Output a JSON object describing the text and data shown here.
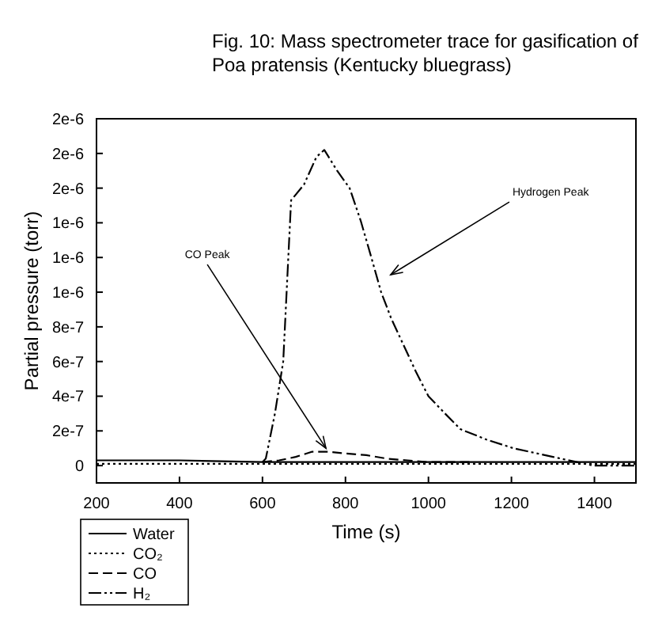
{
  "chart_data": {
    "type": "line",
    "title": "Fig. 10: Mass spectrometer trace for gasification of Poa pratensis (Kentucky bluegrass)",
    "xlabel": "Time (s)",
    "ylabel": "Partial pressure (torr)",
    "xlim": [
      200,
      1500
    ],
    "xticks": [
      200,
      400,
      600,
      800,
      1000,
      1200,
      1400
    ],
    "ylim": [
      -1e-07,
      2e-06
    ],
    "yticks": [
      0,
      {
        "value": 2e-07,
        "label": "2e-7"
      },
      {
        "value": 4e-07,
        "label": "4e-7"
      },
      {
        "value": 6e-07,
        "label": "6e-7"
      },
      {
        "value": 8e-07,
        "label": "8e-7"
      },
      {
        "value": 1e-06,
        "label": "1e-6"
      },
      {
        "value": 1.2e-06,
        "label": "1e-6"
      },
      {
        "value": 1.4e-06,
        "label": "1e-6"
      },
      {
        "value": 1.6e-06,
        "label": "2e-6"
      },
      {
        "value": 1.8e-06,
        "label": "2e-6"
      },
      {
        "value": 2e-06,
        "label": "2e-6"
      }
    ],
    "legend": "bottom left",
    "grid": false,
    "marker": "none",
    "series": [
      {
        "name": "Water",
        "color": "#000000",
        "line_style": "solid",
        "x": [
          200,
          400,
          600,
          800,
          1000,
          1200,
          1400,
          1500
        ],
        "values": [
          3e-08,
          3e-08,
          2e-08,
          2e-08,
          2e-08,
          2e-08,
          2e-08,
          2e-08
        ]
      },
      {
        "name": "CO₂",
        "color": "#000000",
        "line_style": "dotted",
        "x": [
          200,
          400,
          600,
          800,
          1000,
          1200,
          1400,
          1500
        ],
        "values": [
          1e-08,
          1e-08,
          1e-08,
          1e-08,
          1e-08,
          1e-08,
          1e-08,
          1e-08
        ]
      },
      {
        "name": "CO",
        "color": "#000000",
        "line_style": "dashed",
        "x": [
          600,
          640,
          680,
          720,
          760,
          800,
          850,
          900,
          950,
          1000,
          1100
        ],
        "values": [
          2e-08,
          3e-08,
          5e-08,
          8e-08,
          8e-08,
          7e-08,
          6e-08,
          4e-08,
          3e-08,
          2e-08,
          2e-08
        ]
      },
      {
        "name": "H₂",
        "color": "#000000",
        "line_style": "dashdot",
        "x": [
          600,
          608,
          630,
          650,
          669,
          700,
          730,
          749,
          780,
          810,
          837,
          860,
          886,
          910,
          939,
          970,
          1000,
          1040,
          1077,
          1140,
          1205,
          1300,
          1397,
          1500
        ],
        "values": [
          2e-08,
          4e-08,
          3e-07,
          6e-07,
          1.53e-06,
          1.62e-06,
          1.78e-06,
          1.82e-06,
          1.7e-06,
          1.6e-06,
          1.41e-06,
          1.22e-06,
          1e-06,
          8.5e-07,
          7e-07,
          5.4e-07,
          4e-07,
          3e-07,
          2.1e-07,
          1.5e-07,
          1e-07,
          5e-08,
          0,
          0
        ]
      }
    ],
    "annotations": [
      "Hydrogen Peak",
      "CO Peak"
    ]
  }
}
